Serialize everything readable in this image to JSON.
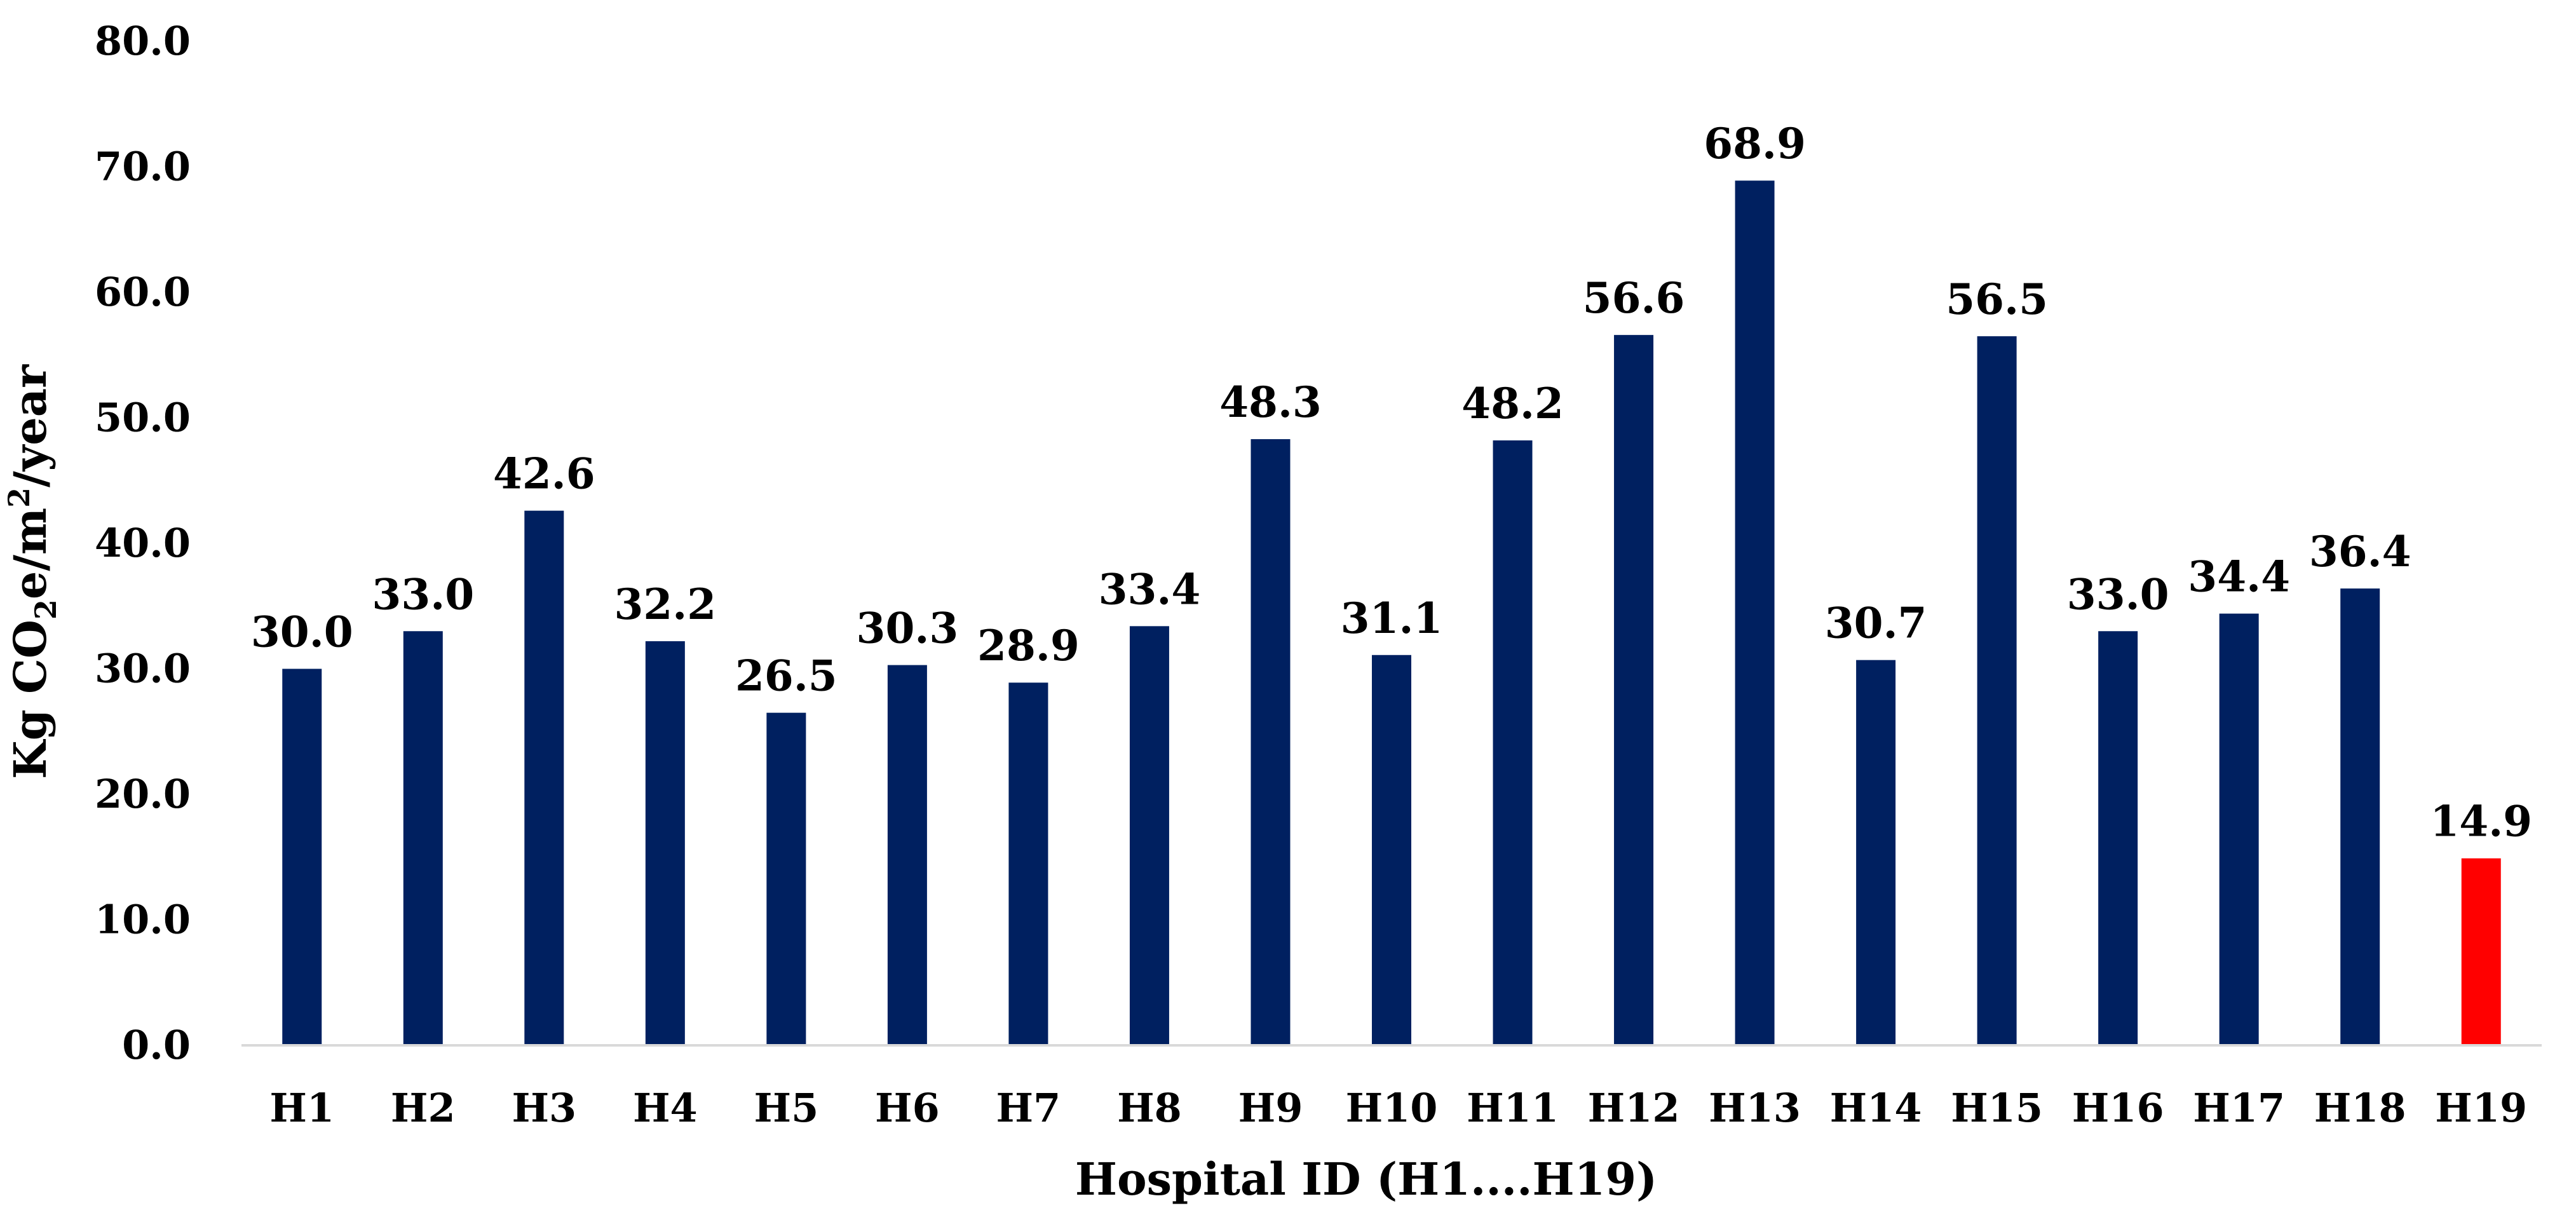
{
  "chart_data": {
    "type": "bar",
    "categories": [
      "H1",
      "H2",
      "H3",
      "H4",
      "H5",
      "H6",
      "H7",
      "H8",
      "H9",
      "H10",
      "H11",
      "H12",
      "H13",
      "H14",
      "H15",
      "H16",
      "H17",
      "H18",
      "H19"
    ],
    "values": [
      30.0,
      33.0,
      42.6,
      32.2,
      26.5,
      30.3,
      28.9,
      33.4,
      48.3,
      31.1,
      48.2,
      56.6,
      68.9,
      30.7,
      56.5,
      33.0,
      34.4,
      36.4,
      14.9
    ],
    "data_labels": [
      "30.0",
      "33.0",
      "42.6",
      "32.2",
      "26.5",
      "30.3",
      "28.9",
      "33.4",
      "48.3",
      "31.1",
      "48.2",
      "56.6",
      "68.9",
      "30.7",
      "56.5",
      "33.0",
      "34.4",
      "36.4",
      "14.9"
    ],
    "y_ticks": [
      "0.0",
      "10.0",
      "20.0",
      "30.0",
      "40.0",
      "50.0",
      "60.0",
      "70.0",
      "80.0"
    ],
    "xlabel": "Hospital ID (H1....H19)",
    "ylabel": {
      "prefix": "Kg CO",
      "sub": "2",
      "mid": "e/m",
      "sup": "2",
      "suffix": "/year"
    },
    "ylim": [
      0,
      80
    ],
    "grid": false,
    "legend": "none",
    "colors": {
      "default_bar": "#002060",
      "highlight_bar": "#ff0000",
      "axis": "#d9d9d9"
    },
    "highlight_category": "H19"
  }
}
